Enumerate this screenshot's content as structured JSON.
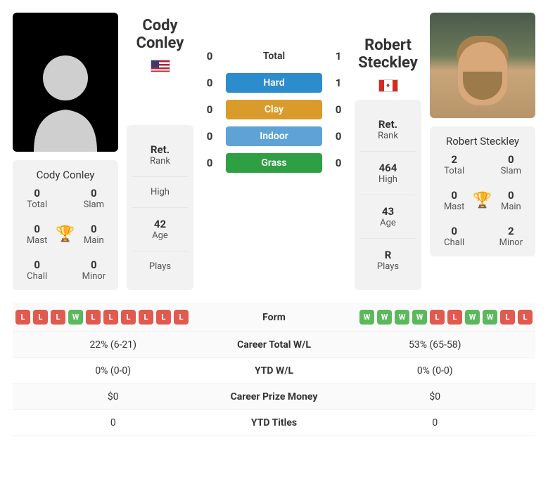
{
  "player1": {
    "name": "Cody Conley",
    "flag": "us",
    "rank_label": "Ret.",
    "rank_sub": "Rank",
    "high": "",
    "high_label": "High",
    "age": "42",
    "age_label": "Age",
    "plays": "",
    "plays_label": "Plays",
    "stats": {
      "total": "0",
      "total_label": "Total",
      "slam": "0",
      "slam_label": "Slam",
      "mast": "0",
      "mast_label": "Mast",
      "main": "0",
      "main_label": "Main",
      "chall": "0",
      "chall_label": "Chall",
      "minor": "0",
      "minor_label": "Minor"
    }
  },
  "player2": {
    "name": "Robert Steckley",
    "flag": "ca",
    "rank_label": "Ret.",
    "rank_sub": "Rank",
    "high": "464",
    "high_label": "High",
    "age": "43",
    "age_label": "Age",
    "plays": "R",
    "plays_label": "Plays",
    "stats": {
      "total": "2",
      "total_label": "Total",
      "slam": "0",
      "slam_label": "Slam",
      "mast": "0",
      "mast_label": "Mast",
      "main": "0",
      "main_label": "Main",
      "chall": "0",
      "chall_label": "Chall",
      "minor": "2",
      "minor_label": "Minor"
    }
  },
  "h2h": {
    "rows": [
      {
        "left": "0",
        "label": "Total",
        "right": "1",
        "class": "surface-total"
      },
      {
        "left": "0",
        "label": "Hard",
        "right": "1",
        "class": "surface-hard"
      },
      {
        "left": "0",
        "label": "Clay",
        "right": "0",
        "class": "surface-clay"
      },
      {
        "left": "0",
        "label": "Indoor",
        "right": "0",
        "class": "surface-indoor"
      },
      {
        "left": "0",
        "label": "Grass",
        "right": "0",
        "class": "surface-grass"
      }
    ]
  },
  "comparison": {
    "form_label": "Form",
    "form1": [
      "L",
      "L",
      "L",
      "W",
      "L",
      "L",
      "L",
      "L",
      "L",
      "L"
    ],
    "form2": [
      "W",
      "W",
      "W",
      "W",
      "L",
      "L",
      "W",
      "W",
      "L",
      "L"
    ],
    "rows": [
      {
        "left": "22% (6-21)",
        "label": "Career Total W/L",
        "right": "53% (65-58)"
      },
      {
        "left": "0% (0-0)",
        "label": "YTD W/L",
        "right": "0% (0-0)"
      },
      {
        "left": "$0",
        "label": "Career Prize Money",
        "right": "$0"
      },
      {
        "left": "0",
        "label": "YTD Titles",
        "right": "0"
      }
    ]
  },
  "colors": {
    "win": "#5cb85c",
    "loss": "#e05a4f",
    "hard": "#2c8ccc",
    "clay": "#d99b2b",
    "indoor": "#5fa3d6",
    "grass": "#2ea043",
    "card_bg": "#f2f2f2"
  }
}
